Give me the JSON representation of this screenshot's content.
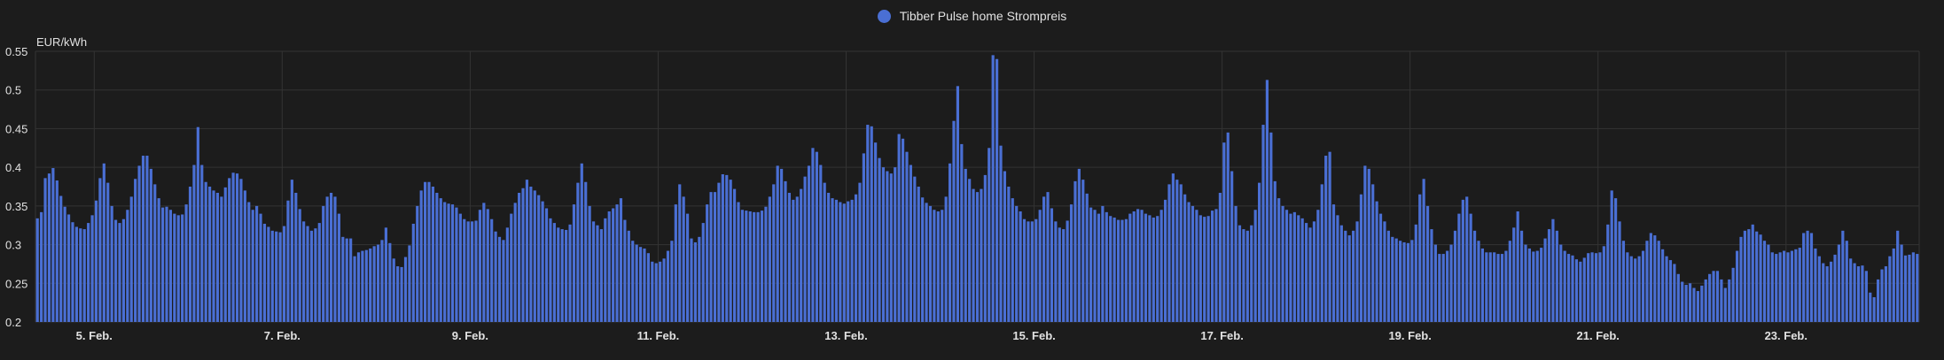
{
  "chart_data": {
    "type": "bar",
    "ylabel": "EUR/kWh",
    "ylim": [
      0.2,
      0.55
    ],
    "y_ticks": [
      "0.2",
      "0.25",
      "0.3",
      "0.35",
      "0.4",
      "0.45",
      "0.5",
      "0.55"
    ],
    "x_ticks": [
      "5. Feb.",
      "7. Feb.",
      "9. Feb.",
      "11. Feb.",
      "13. Feb.",
      "15. Feb.",
      "17. Feb.",
      "19. Feb.",
      "21. Feb.",
      "23. Feb."
    ],
    "grid": true,
    "legend_position": "top-center",
    "color": "#4a6fd4",
    "series": [
      {
        "name": "Tibber Pulse home Strompreis",
        "start": "2025-02-04 09:00",
        "interval_hours": 1,
        "values": [
          0.334,
          0.342,
          0.386,
          0.392,
          0.399,
          0.383,
          0.363,
          0.349,
          0.339,
          0.329,
          0.323,
          0.321,
          0.32,
          0.328,
          0.338,
          0.357,
          0.386,
          0.405,
          0.38,
          0.35,
          0.332,
          0.328,
          0.333,
          0.345,
          0.362,
          0.385,
          0.402,
          0.415,
          0.415,
          0.398,
          0.378,
          0.36,
          0.348,
          0.349,
          0.345,
          0.34,
          0.338,
          0.339,
          0.352,
          0.375,
          0.403,
          0.452,
          0.403,
          0.381,
          0.375,
          0.37,
          0.367,
          0.362,
          0.374,
          0.386,
          0.393,
          0.392,
          0.385,
          0.37,
          0.355,
          0.345,
          0.35,
          0.34,
          0.327,
          0.323,
          0.318,
          0.317,
          0.316,
          0.324,
          0.357,
          0.384,
          0.367,
          0.346,
          0.33,
          0.324,
          0.318,
          0.321,
          0.328,
          0.35,
          0.362,
          0.367,
          0.362,
          0.34,
          0.31,
          0.308,
          0.308,
          0.285,
          0.29,
          0.292,
          0.293,
          0.295,
          0.298,
          0.3,
          0.306,
          0.322,
          0.302,
          0.282,
          0.272,
          0.271,
          0.284,
          0.299,
          0.327,
          0.35,
          0.37,
          0.381,
          0.381,
          0.375,
          0.367,
          0.36,
          0.355,
          0.353,
          0.352,
          0.348,
          0.34,
          0.333,
          0.33,
          0.33,
          0.331,
          0.345,
          0.354,
          0.346,
          0.333,
          0.317,
          0.31,
          0.306,
          0.322,
          0.34,
          0.354,
          0.367,
          0.373,
          0.384,
          0.375,
          0.37,
          0.364,
          0.356,
          0.347,
          0.334,
          0.328,
          0.322,
          0.32,
          0.319,
          0.326,
          0.352,
          0.38,
          0.405,
          0.381,
          0.35,
          0.33,
          0.325,
          0.32,
          0.334,
          0.343,
          0.347,
          0.352,
          0.36,
          0.332,
          0.318,
          0.305,
          0.3,
          0.297,
          0.295,
          0.289,
          0.278,
          0.276,
          0.278,
          0.282,
          0.292,
          0.305,
          0.352,
          0.378,
          0.362,
          0.34,
          0.308,
          0.303,
          0.31,
          0.328,
          0.352,
          0.368,
          0.368,
          0.38,
          0.391,
          0.39,
          0.384,
          0.372,
          0.355,
          0.345,
          0.344,
          0.343,
          0.342,
          0.342,
          0.344,
          0.349,
          0.362,
          0.378,
          0.402,
          0.398,
          0.382,
          0.367,
          0.358,
          0.362,
          0.372,
          0.388,
          0.402,
          0.425,
          0.42,
          0.403,
          0.38,
          0.367,
          0.36,
          0.358,
          0.355,
          0.353,
          0.356,
          0.358,
          0.365,
          0.38,
          0.418,
          0.455,
          0.453,
          0.432,
          0.412,
          0.4,
          0.395,
          0.392,
          0.4,
          0.443,
          0.437,
          0.42,
          0.403,
          0.388,
          0.375,
          0.361,
          0.354,
          0.35,
          0.345,
          0.343,
          0.345,
          0.362,
          0.405,
          0.46,
          0.505,
          0.43,
          0.398,
          0.385,
          0.372,
          0.368,
          0.372,
          0.39,
          0.425,
          0.545,
          0.54,
          0.428,
          0.395,
          0.375,
          0.36,
          0.35,
          0.343,
          0.333,
          0.33,
          0.33,
          0.333,
          0.345,
          0.362,
          0.368,
          0.347,
          0.33,
          0.322,
          0.32,
          0.331,
          0.352,
          0.382,
          0.398,
          0.384,
          0.366,
          0.348,
          0.345,
          0.34,
          0.35,
          0.342,
          0.337,
          0.335,
          0.332,
          0.332,
          0.333,
          0.34,
          0.343,
          0.346,
          0.345,
          0.34,
          0.338,
          0.335,
          0.337,
          0.345,
          0.358,
          0.378,
          0.392,
          0.384,
          0.378,
          0.365,
          0.355,
          0.35,
          0.345,
          0.338,
          0.336,
          0.337,
          0.344,
          0.346,
          0.367,
          0.432,
          0.445,
          0.395,
          0.35,
          0.325,
          0.32,
          0.318,
          0.325,
          0.345,
          0.38,
          0.455,
          0.513,
          0.445,
          0.382,
          0.36,
          0.35,
          0.345,
          0.34,
          0.342,
          0.338,
          0.334,
          0.328,
          0.322,
          0.33,
          0.345,
          0.378,
          0.415,
          0.42,
          0.352,
          0.338,
          0.325,
          0.318,
          0.312,
          0.318,
          0.33,
          0.365,
          0.402,
          0.398,
          0.378,
          0.356,
          0.34,
          0.33,
          0.318,
          0.31,
          0.308,
          0.305,
          0.303,
          0.302,
          0.306,
          0.326,
          0.365,
          0.385,
          0.35,
          0.32,
          0.3,
          0.288,
          0.288,
          0.292,
          0.3,
          0.318,
          0.34,
          0.358,
          0.362,
          0.34,
          0.318,
          0.305,
          0.295,
          0.29,
          0.29,
          0.29,
          0.288,
          0.288,
          0.292,
          0.305,
          0.322,
          0.343,
          0.318,
          0.3,
          0.295,
          0.291,
          0.292,
          0.296,
          0.308,
          0.32,
          0.333,
          0.318,
          0.3,
          0.292,
          0.288,
          0.286,
          0.281,
          0.278,
          0.283,
          0.289,
          0.29,
          0.289,
          0.29,
          0.298,
          0.326,
          0.37,
          0.36,
          0.33,
          0.305,
          0.29,
          0.285,
          0.282,
          0.285,
          0.292,
          0.305,
          0.315,
          0.312,
          0.305,
          0.294,
          0.285,
          0.28,
          0.275,
          0.262,
          0.252,
          0.248,
          0.25,
          0.244,
          0.24,
          0.247,
          0.255,
          0.262,
          0.266,
          0.266,
          0.255,
          0.244,
          0.255,
          0.27,
          0.292,
          0.31,
          0.318,
          0.32,
          0.326,
          0.317,
          0.313,
          0.305,
          0.3,
          0.29,
          0.288,
          0.29,
          0.292,
          0.29,
          0.292,
          0.294,
          0.296,
          0.315,
          0.318,
          0.315,
          0.295,
          0.285,
          0.276,
          0.272,
          0.278,
          0.287,
          0.3,
          0.318,
          0.305,
          0.282,
          0.276,
          0.272,
          0.273,
          0.266,
          0.238,
          0.232,
          0.255,
          0.268,
          0.272,
          0.285,
          0.295,
          0.318,
          0.3,
          0.286,
          0.287,
          0.29,
          0.288
        ]
      }
    ]
  }
}
